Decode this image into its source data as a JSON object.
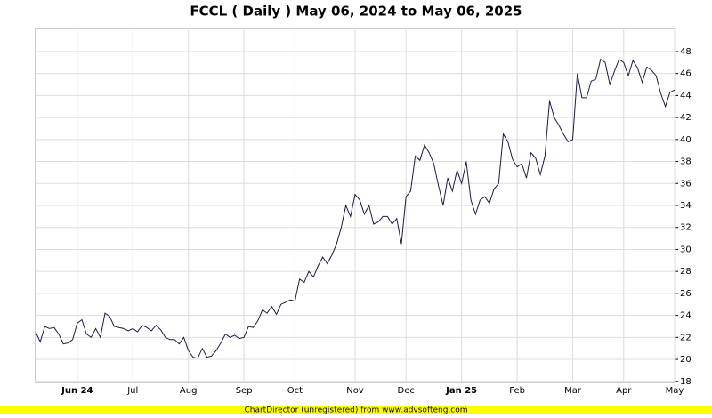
{
  "chart_data": {
    "type": "line",
    "title": "FCCL ( Daily ) May 06, 2024 to May 06, 2025",
    "footer": "ChartDirector (unregistered) from www.advsofteng.com",
    "categories": [
      null,
      null,
      null,
      null,
      null,
      null,
      null,
      null,
      null,
      "Jun 24",
      null,
      null,
      null,
      null,
      null,
      null,
      null,
      null,
      null,
      null,
      null,
      "Jul",
      null,
      null,
      null,
      null,
      null,
      null,
      null,
      null,
      null,
      null,
      null,
      "Aug",
      null,
      null,
      null,
      null,
      null,
      null,
      null,
      null,
      null,
      null,
      null,
      "Sep",
      null,
      null,
      null,
      null,
      null,
      null,
      null,
      null,
      null,
      null,
      "Oct",
      null,
      null,
      null,
      null,
      null,
      null,
      null,
      null,
      null,
      null,
      null,
      null,
      "Nov",
      null,
      null,
      null,
      null,
      null,
      null,
      null,
      null,
      null,
      null,
      "Dec",
      null,
      null,
      null,
      null,
      null,
      null,
      null,
      null,
      null,
      null,
      null,
      "Jan 25",
      null,
      null,
      null,
      null,
      null,
      null,
      null,
      null,
      null,
      null,
      null,
      "Feb",
      null,
      null,
      null,
      null,
      null,
      null,
      null,
      null,
      null,
      null,
      null,
      "Mar",
      null,
      null,
      null,
      null,
      null,
      null,
      null,
      null,
      null,
      null,
      "Apr",
      null,
      null,
      null,
      null,
      null,
      null,
      null,
      null,
      null,
      null,
      "May"
    ],
    "series": [
      {
        "name": "FCCL",
        "color": "#1a1a4e",
        "values": [
          22.5,
          21.6,
          23.0,
          22.8,
          22.9,
          22.3,
          21.4,
          21.5,
          21.8,
          23.3,
          23.6,
          22.3,
          22.0,
          22.8,
          22.0,
          24.2,
          23.9,
          23.0,
          22.9,
          22.8,
          22.6,
          22.8,
          22.5,
          23.1,
          22.9,
          22.6,
          23.1,
          22.7,
          22.0,
          21.8,
          21.8,
          21.4,
          22.0,
          20.8,
          20.2,
          20.1,
          21.0,
          20.2,
          20.3,
          20.8,
          21.5,
          22.3,
          22.0,
          22.2,
          21.9,
          22.0,
          23.0,
          22.9,
          23.5,
          24.5,
          24.2,
          24.8,
          24.1,
          25.0,
          25.2,
          25.4,
          25.3,
          27.3,
          27.0,
          28.0,
          27.5,
          28.5,
          29.3,
          28.7,
          29.5,
          30.5,
          32.0,
          34.0,
          33.0,
          35.0,
          34.5,
          33.2,
          34.0,
          32.3,
          32.5,
          33.0,
          33.0,
          32.3,
          32.8,
          30.5,
          34.8,
          35.3,
          38.5,
          38.1,
          39.5,
          38.8,
          37.8,
          35.8,
          34.0,
          36.5,
          35.3,
          37.2,
          36.0,
          38.0,
          34.5,
          33.2,
          34.5,
          34.8,
          34.2,
          35.5,
          36.0,
          40.5,
          39.8,
          38.2,
          37.5,
          37.8,
          36.5,
          38.8,
          38.3,
          36.8,
          38.5,
          43.5,
          42.0,
          41.3,
          40.5,
          39.8,
          40.0,
          46.0,
          43.8,
          43.8,
          45.3,
          45.5,
          47.3,
          47.0,
          45.0,
          46.2,
          47.3,
          47.0,
          45.8,
          47.2,
          46.5,
          45.2,
          46.6,
          46.3,
          45.8,
          44.2,
          43.0,
          44.3,
          44.5
        ]
      }
    ],
    "ylim": [
      17.9,
      50.1
    ],
    "yticks": [
      18,
      20,
      22,
      24,
      26,
      28,
      30,
      32,
      34,
      36,
      38,
      40,
      42,
      44,
      46,
      48
    ],
    "grid": true
  }
}
